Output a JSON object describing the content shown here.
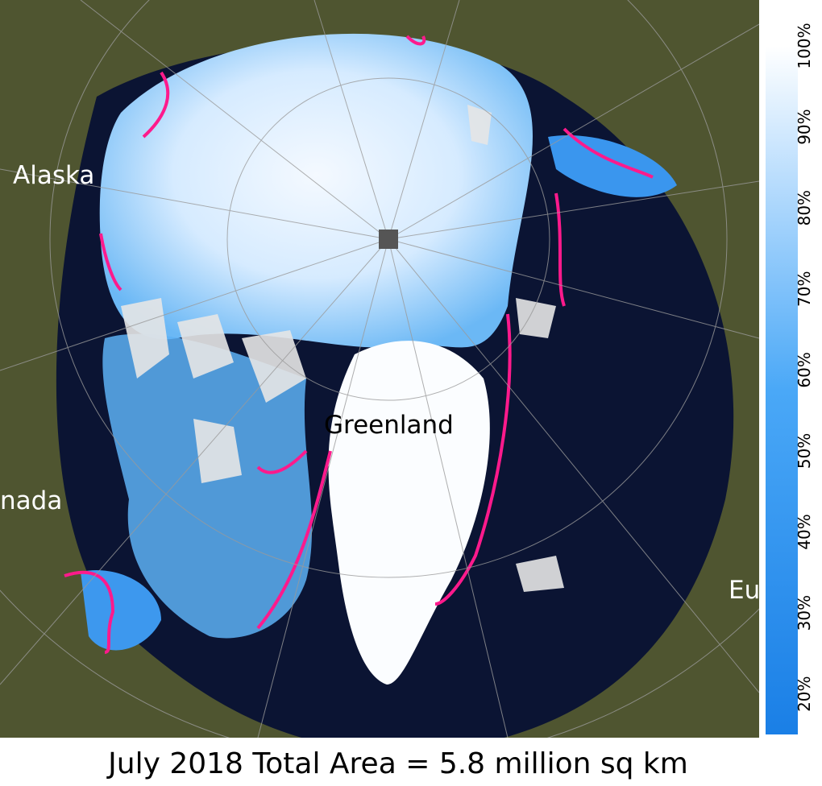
{
  "map": {
    "labels": [
      "Alaska",
      "Greenland",
      "nada",
      "Eu"
    ],
    "title": "July 2018 Total Area = 5.8 million sq km",
    "colorbar": {
      "range": [
        15,
        100
      ],
      "ticks": [
        {
          "value": 20,
          "label": "20%"
        },
        {
          "value": 30,
          "label": "30%"
        },
        {
          "value": 40,
          "label": "40%"
        },
        {
          "value": 50,
          "label": "50%"
        },
        {
          "value": 60,
          "label": "60%"
        },
        {
          "value": 70,
          "label": "70%"
        },
        {
          "value": 80,
          "label": "80%"
        },
        {
          "value": 90,
          "label": "90%"
        },
        {
          "value": 100,
          "label": "100%"
        }
      ]
    }
  }
}
